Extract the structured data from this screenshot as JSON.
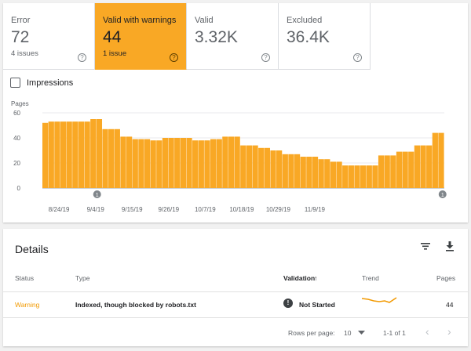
{
  "tiles": [
    {
      "label": "Error",
      "value": "72",
      "sub": "4 issues",
      "help": "?"
    },
    {
      "label": "Valid with warnings",
      "value": "44",
      "sub": "1 issue",
      "help": "?"
    },
    {
      "label": "Valid",
      "value": "3.32K",
      "sub": "",
      "help": "?"
    },
    {
      "label": "Excluded",
      "value": "36.4K",
      "sub": "",
      "help": "?"
    }
  ],
  "impressions_label": "Impressions",
  "chart_data": {
    "type": "bar",
    "ylabel": "Pages",
    "ylim": [
      0,
      60
    ],
    "yticks": [
      "0",
      "20",
      "40",
      "60"
    ],
    "x_tick_labels": [
      "8/24/19",
      "9/4/19",
      "9/15/19",
      "9/26/19",
      "10/7/19",
      "10/18/19",
      "10/29/19",
      "11/9/19"
    ],
    "values": [
      52,
      53,
      53,
      53,
      53,
      53,
      53,
      53,
      55,
      55,
      47,
      47,
      47,
      41,
      41,
      39,
      39,
      39,
      38,
      38,
      40,
      40,
      40,
      40,
      40,
      38,
      38,
      38,
      39,
      39,
      41,
      41,
      41,
      34,
      34,
      34,
      32,
      32,
      30,
      30,
      27,
      27,
      27,
      25,
      25,
      25,
      23,
      23,
      21,
      21,
      18,
      18,
      18,
      18,
      18,
      18,
      26,
      26,
      26,
      29,
      29,
      29,
      34,
      34,
      34,
      44,
      44
    ],
    "annotations": [
      {
        "index": 16,
        "label": "1"
      },
      {
        "index": 120,
        "label": "1"
      }
    ],
    "color": "#f9a825"
  },
  "details": {
    "title": "Details",
    "filter_icon": "filter-icon",
    "download_icon": "download-icon",
    "columns": {
      "status": "Status",
      "type": "Type",
      "validation": "Validation",
      "validation_sort": "↑",
      "trend": "Trend",
      "pages": "Pages"
    },
    "row": {
      "status": "Warning",
      "type": "Indexed, though blocked by robots.txt",
      "validation_icon": "!",
      "validation": "Not Started",
      "pages": "44"
    },
    "footer": {
      "rows_per_page_label": "Rows per page:",
      "rows_per_page": "10",
      "range": "1-1 of 1",
      "prev": "‹",
      "next": "›"
    }
  }
}
